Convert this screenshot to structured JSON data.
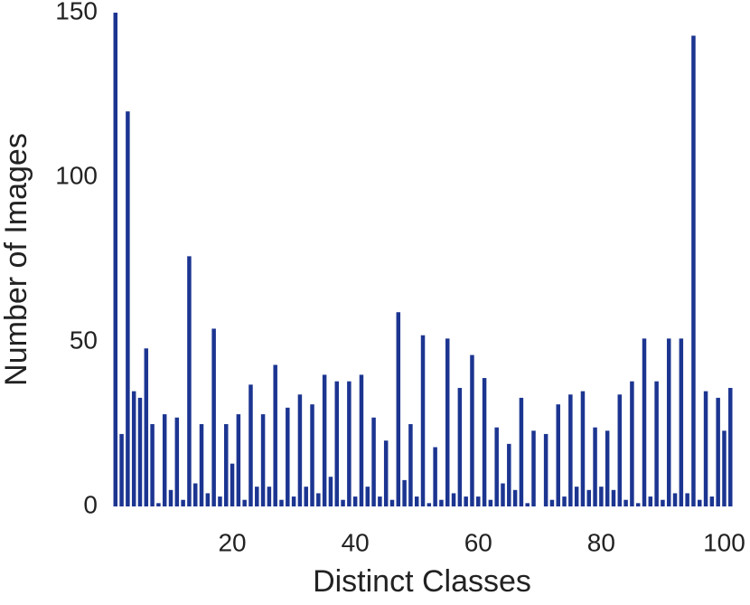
{
  "chart_data": {
    "type": "bar",
    "xlabel": "Distinct Classes",
    "ylabel": "Number of Images",
    "x": [
      1,
      2,
      3,
      4,
      5,
      6,
      7,
      8,
      9,
      10,
      11,
      12,
      13,
      14,
      15,
      16,
      17,
      18,
      19,
      20,
      21,
      22,
      23,
      24,
      25,
      26,
      27,
      28,
      29,
      30,
      31,
      32,
      33,
      34,
      35,
      36,
      37,
      38,
      39,
      40,
      41,
      42,
      43,
      44,
      45,
      46,
      47,
      48,
      49,
      50,
      51,
      52,
      53,
      54,
      55,
      56,
      57,
      58,
      59,
      60,
      61,
      62,
      63,
      64,
      65,
      66,
      67,
      68,
      69,
      70,
      71,
      72,
      73,
      74,
      75,
      76,
      77,
      78,
      79,
      80,
      81,
      82,
      83,
      84,
      85,
      86,
      87,
      88,
      89,
      90,
      91,
      92,
      93,
      94,
      95,
      96,
      97,
      98,
      99,
      100,
      101
    ],
    "values": [
      150,
      22,
      120,
      35,
      33,
      48,
      25,
      1,
      28,
      5,
      27,
      2,
      76,
      7,
      25,
      4,
      54,
      3,
      25,
      13,
      28,
      2,
      37,
      6,
      28,
      6,
      43,
      2,
      30,
      3,
      34,
      6,
      31,
      4,
      40,
      9,
      38,
      2,
      38,
      3,
      40,
      6,
      27,
      3,
      20,
      2,
      59,
      8,
      25,
      3,
      52,
      1,
      18,
      2,
      51,
      4,
      36,
      3,
      46,
      3,
      39,
      2,
      24,
      7,
      19,
      5,
      33,
      1,
      23,
      0,
      22,
      2,
      31,
      3,
      34,
      6,
      35,
      5,
      24,
      6,
      23,
      5,
      34,
      2,
      38,
      1,
      51,
      3,
      38,
      2,
      51,
      4,
      51,
      4,
      143,
      2,
      35,
      3,
      33,
      23,
      36
    ],
    "color": "#1c3591",
    "xlim": [
      0.3,
      101.4
    ],
    "xticks": [
      20,
      40,
      60,
      80,
      100
    ],
    "ylim": [
      0,
      150
    ],
    "yticks": [
      0,
      50,
      100,
      150
    ],
    "grid": false
  }
}
